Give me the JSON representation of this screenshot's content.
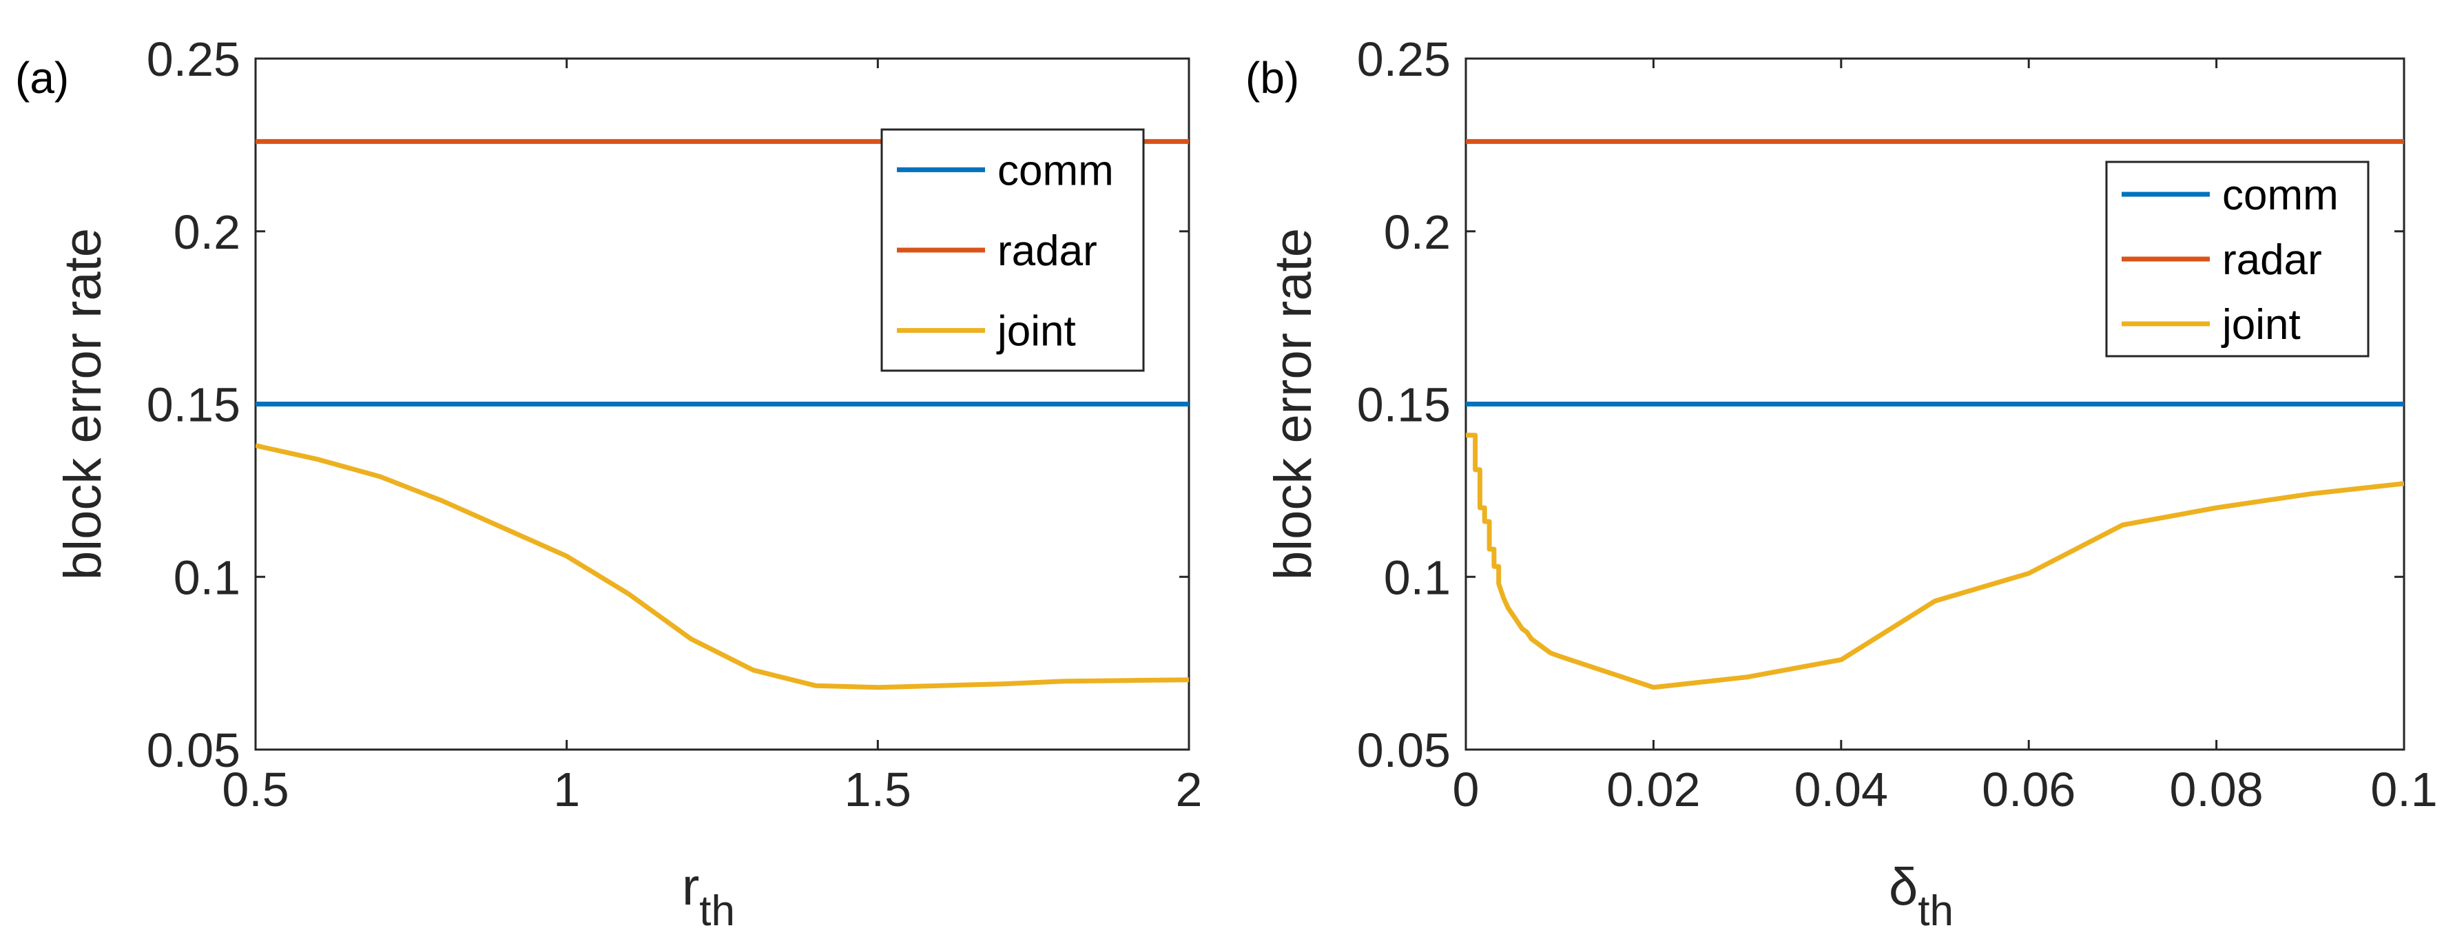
{
  "chart_data": [
    {
      "type": "line",
      "panel_label": "(a)",
      "title": "",
      "xlabel": {
        "main": "r",
        "sub": "th"
      },
      "ylabel": "block error rate",
      "xlim": [
        0.5,
        2
      ],
      "ylim": [
        0.05,
        0.25
      ],
      "xticks": [
        0.5,
        1,
        1.5,
        2
      ],
      "xtick_labels": [
        "0.5",
        "1",
        "1.5",
        "2"
      ],
      "yticks": [
        0.05,
        0.1,
        0.15,
        0.2,
        0.25
      ],
      "ytick_labels": [
        "0.05",
        "0.1",
        "0.15",
        "0.2",
        "0.25"
      ],
      "grid": false,
      "legend_position": "top-right",
      "series": [
        {
          "name": "comm",
          "color": "#0072BD",
          "x": [
            0.5,
            2
          ],
          "y": [
            0.15,
            0.15
          ]
        },
        {
          "name": "radar",
          "color": "#D95319",
          "x": [
            0.5,
            2
          ],
          "y": [
            0.226,
            0.226
          ]
        },
        {
          "name": "joint",
          "color": "#EDB120",
          "x": [
            0.5,
            0.6,
            0.7,
            0.8,
            0.9,
            1.0,
            1.1,
            1.2,
            1.3,
            1.4,
            1.5,
            1.6,
            1.7,
            1.8,
            1.9,
            2.0
          ],
          "y": [
            0.138,
            0.134,
            0.129,
            0.122,
            0.114,
            0.106,
            0.095,
            0.082,
            0.073,
            0.0685,
            0.068,
            0.0685,
            0.069,
            0.0698,
            0.07,
            0.0702
          ]
        }
      ]
    },
    {
      "type": "line",
      "panel_label": "(b)",
      "title": "",
      "xlabel": {
        "main": "δ",
        "sub": "th"
      },
      "ylabel": "block error rate",
      "xlim": [
        0,
        0.1
      ],
      "ylim": [
        0.05,
        0.25
      ],
      "xticks": [
        0,
        0.02,
        0.04,
        0.06,
        0.08,
        0.1
      ],
      "xtick_labels": [
        "0",
        "0.02",
        "0.04",
        "0.06",
        "0.08",
        "0.1"
      ],
      "yticks": [
        0.05,
        0.1,
        0.15,
        0.2,
        0.25
      ],
      "ytick_labels": [
        "0.05",
        "0.1",
        "0.15",
        "0.2",
        "0.25"
      ],
      "grid": false,
      "legend_position": "top-right",
      "series": [
        {
          "name": "comm",
          "color": "#0072BD",
          "x": [
            0,
            0.1
          ],
          "y": [
            0.15,
            0.15
          ]
        },
        {
          "name": "radar",
          "color": "#D95319",
          "x": [
            0,
            0.1
          ],
          "y": [
            0.226,
            0.226
          ]
        },
        {
          "name": "joint",
          "color": "#EDB120",
          "x": [
            0,
            0.001,
            0.001,
            0.0015,
            0.0015,
            0.002,
            0.002,
            0.0025,
            0.0025,
            0.003,
            0.003,
            0.0035,
            0.0035,
            0.004,
            0.0045,
            0.005,
            0.0055,
            0.006,
            0.0065,
            0.007,
            0.0075,
            0.008,
            0.0085,
            0.009,
            0.0095,
            0.01,
            0.02,
            0.03,
            0.04,
            0.05,
            0.06,
            0.07,
            0.08,
            0.09,
            0.1
          ],
          "y": [
            0.141,
            0.141,
            0.131,
            0.131,
            0.12,
            0.12,
            0.116,
            0.116,
            0.108,
            0.108,
            0.103,
            0.103,
            0.098,
            0.094,
            0.091,
            0.089,
            0.087,
            0.085,
            0.084,
            0.082,
            0.081,
            0.08,
            0.079,
            0.078,
            0.0775,
            0.077,
            0.068,
            0.071,
            0.076,
            0.093,
            0.101,
            0.115,
            0.12,
            0.124,
            0.127
          ]
        }
      ]
    }
  ]
}
